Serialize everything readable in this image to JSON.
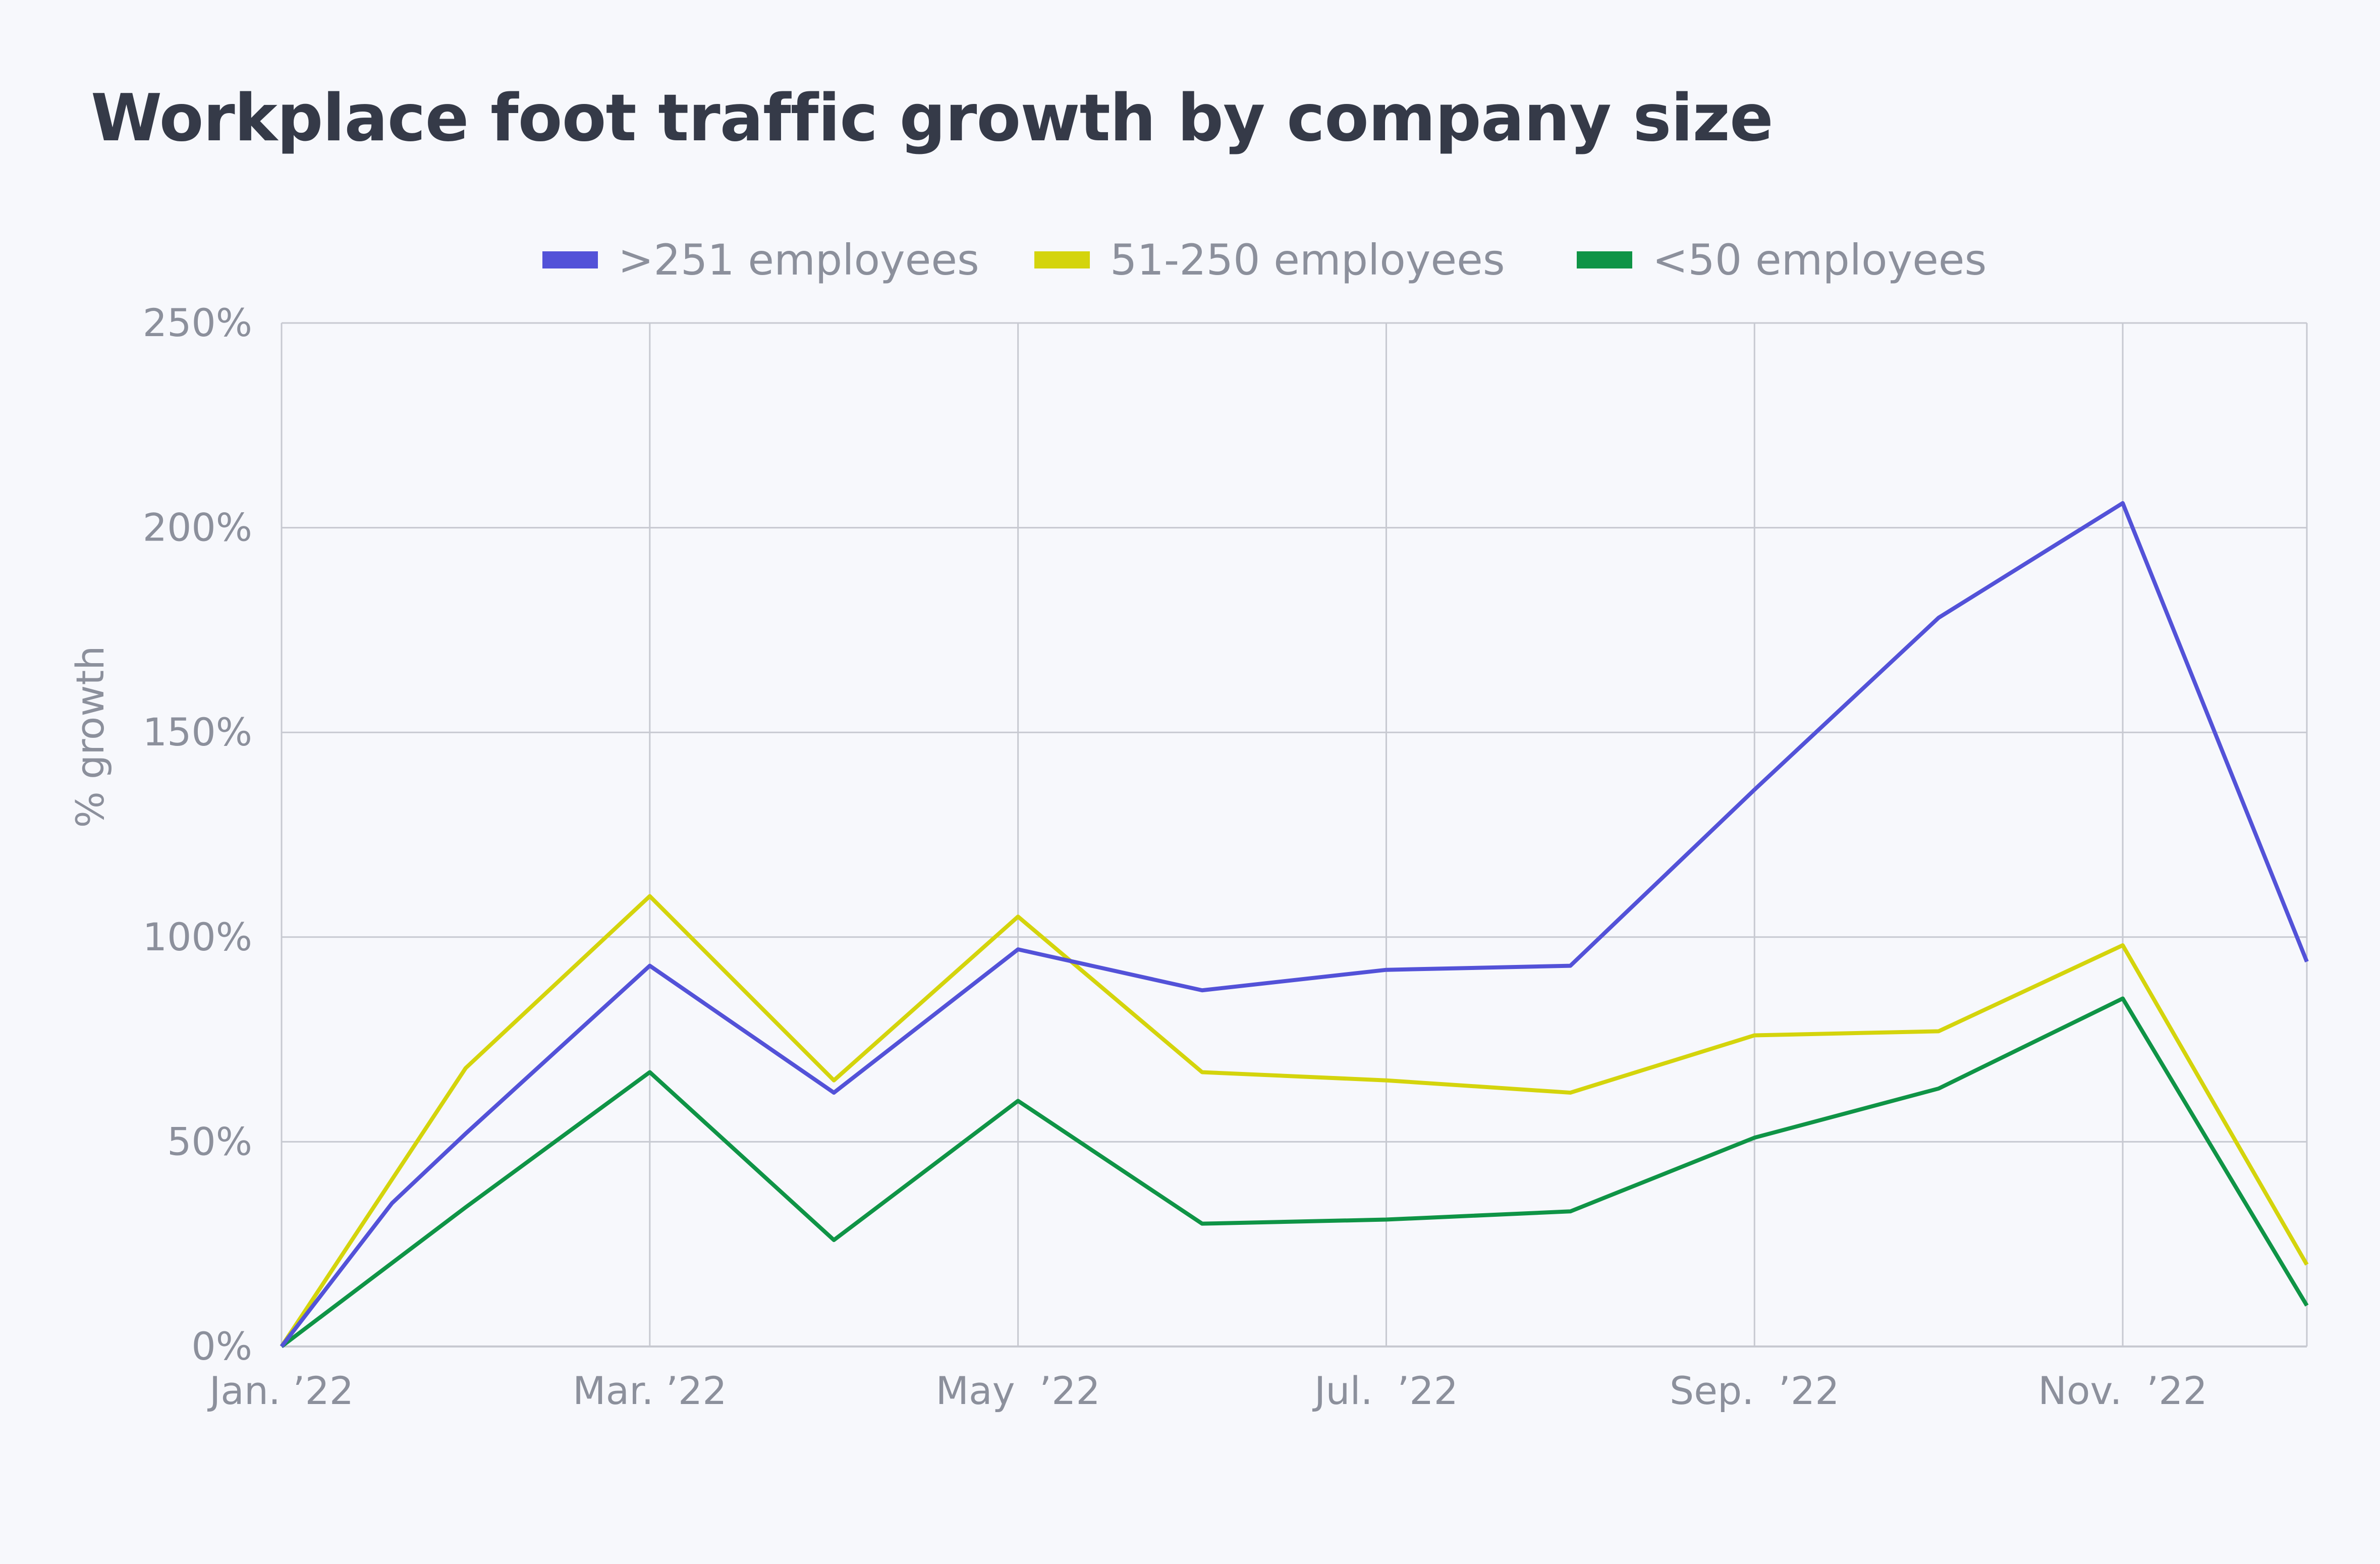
{
  "title": "Workplace foot traffic growth by company size",
  "colors": {
    "background": "#f7f8fc",
    "grid": "#c7c9d1",
    "text": "#8c909c",
    "title": "#353a48"
  },
  "chart_data": {
    "type": "line",
    "title": "Workplace foot traffic growth by company size",
    "ylabel": "% growth",
    "xlabel": "",
    "ylim": [
      0,
      250
    ],
    "yticks": [
      "0%",
      "50%",
      "100%",
      "150%",
      "200%",
      "250%"
    ],
    "ytick_values": [
      0,
      50,
      100,
      150,
      200,
      250
    ],
    "xticks": [
      "Jan. ’22",
      "Mar. ’22",
      "May  ’22",
      "Jul.  ’22",
      "Sep.  ’22",
      "Nov.  ’22"
    ],
    "xtick_values": [
      0,
      2,
      4,
      6,
      8,
      10
    ],
    "x": [
      0,
      0.6,
      1,
      2,
      3,
      4,
      5,
      6,
      7,
      8,
      9,
      10,
      11
    ],
    "grid": true,
    "legend_position": "top-center",
    "series": [
      {
        "name": ">251 employees",
        "color": "#5352d8",
        "x": [
          0,
          0.6,
          1,
          2,
          3,
          4,
          5,
          6,
          7,
          8,
          9,
          10,
          11
        ],
        "values": [
          0,
          35,
          52,
          93,
          62,
          97,
          87,
          92,
          93,
          136,
          178,
          206,
          94
        ]
      },
      {
        "name": "51-250 employees",
        "color": "#d4d40c",
        "x": [
          0,
          1,
          2,
          3,
          4,
          5,
          6,
          7,
          8,
          9,
          10,
          11
        ],
        "values": [
          0,
          68,
          110,
          65,
          105,
          67,
          65,
          62,
          76,
          77,
          98,
          20
        ]
      },
      {
        "name": "<50 employees",
        "color": "#0f9446",
        "x": [
          0,
          1,
          2,
          3,
          4,
          5,
          6,
          7,
          8,
          9,
          10,
          11
        ],
        "values": [
          0,
          34,
          67,
          26,
          60,
          30,
          31,
          33,
          51,
          63,
          85,
          10
        ]
      }
    ]
  }
}
